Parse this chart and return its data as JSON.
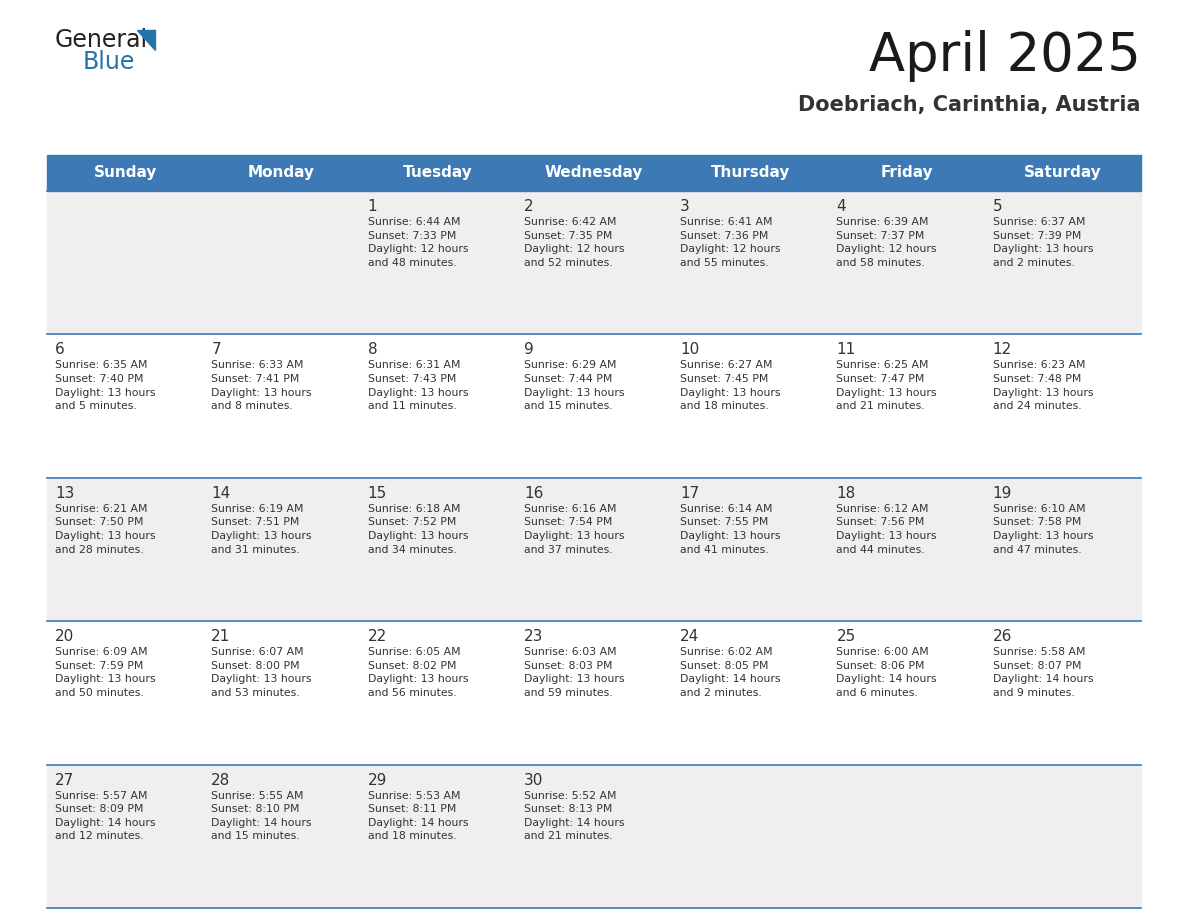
{
  "title": "April 2025",
  "subtitle": "Doebriach, Carinthia, Austria",
  "days_of_week": [
    "Sunday",
    "Monday",
    "Tuesday",
    "Wednesday",
    "Thursday",
    "Friday",
    "Saturday"
  ],
  "header_bg": "#3d7ab5",
  "header_text": "#ffffff",
  "row_bg_odd": "#efefef",
  "row_bg_even": "#ffffff",
  "border_color": "#3d7ab5",
  "text_color": "#333333",
  "calendar": [
    [
      {
        "day": "",
        "info": ""
      },
      {
        "day": "",
        "info": ""
      },
      {
        "day": "1",
        "info": "Sunrise: 6:44 AM\nSunset: 7:33 PM\nDaylight: 12 hours\nand 48 minutes."
      },
      {
        "day": "2",
        "info": "Sunrise: 6:42 AM\nSunset: 7:35 PM\nDaylight: 12 hours\nand 52 minutes."
      },
      {
        "day": "3",
        "info": "Sunrise: 6:41 AM\nSunset: 7:36 PM\nDaylight: 12 hours\nand 55 minutes."
      },
      {
        "day": "4",
        "info": "Sunrise: 6:39 AM\nSunset: 7:37 PM\nDaylight: 12 hours\nand 58 minutes."
      },
      {
        "day": "5",
        "info": "Sunrise: 6:37 AM\nSunset: 7:39 PM\nDaylight: 13 hours\nand 2 minutes."
      }
    ],
    [
      {
        "day": "6",
        "info": "Sunrise: 6:35 AM\nSunset: 7:40 PM\nDaylight: 13 hours\nand 5 minutes."
      },
      {
        "day": "7",
        "info": "Sunrise: 6:33 AM\nSunset: 7:41 PM\nDaylight: 13 hours\nand 8 minutes."
      },
      {
        "day": "8",
        "info": "Sunrise: 6:31 AM\nSunset: 7:43 PM\nDaylight: 13 hours\nand 11 minutes."
      },
      {
        "day": "9",
        "info": "Sunrise: 6:29 AM\nSunset: 7:44 PM\nDaylight: 13 hours\nand 15 minutes."
      },
      {
        "day": "10",
        "info": "Sunrise: 6:27 AM\nSunset: 7:45 PM\nDaylight: 13 hours\nand 18 minutes."
      },
      {
        "day": "11",
        "info": "Sunrise: 6:25 AM\nSunset: 7:47 PM\nDaylight: 13 hours\nand 21 minutes."
      },
      {
        "day": "12",
        "info": "Sunrise: 6:23 AM\nSunset: 7:48 PM\nDaylight: 13 hours\nand 24 minutes."
      }
    ],
    [
      {
        "day": "13",
        "info": "Sunrise: 6:21 AM\nSunset: 7:50 PM\nDaylight: 13 hours\nand 28 minutes."
      },
      {
        "day": "14",
        "info": "Sunrise: 6:19 AM\nSunset: 7:51 PM\nDaylight: 13 hours\nand 31 minutes."
      },
      {
        "day": "15",
        "info": "Sunrise: 6:18 AM\nSunset: 7:52 PM\nDaylight: 13 hours\nand 34 minutes."
      },
      {
        "day": "16",
        "info": "Sunrise: 6:16 AM\nSunset: 7:54 PM\nDaylight: 13 hours\nand 37 minutes."
      },
      {
        "day": "17",
        "info": "Sunrise: 6:14 AM\nSunset: 7:55 PM\nDaylight: 13 hours\nand 41 minutes."
      },
      {
        "day": "18",
        "info": "Sunrise: 6:12 AM\nSunset: 7:56 PM\nDaylight: 13 hours\nand 44 minutes."
      },
      {
        "day": "19",
        "info": "Sunrise: 6:10 AM\nSunset: 7:58 PM\nDaylight: 13 hours\nand 47 minutes."
      }
    ],
    [
      {
        "day": "20",
        "info": "Sunrise: 6:09 AM\nSunset: 7:59 PM\nDaylight: 13 hours\nand 50 minutes."
      },
      {
        "day": "21",
        "info": "Sunrise: 6:07 AM\nSunset: 8:00 PM\nDaylight: 13 hours\nand 53 minutes."
      },
      {
        "day": "22",
        "info": "Sunrise: 6:05 AM\nSunset: 8:02 PM\nDaylight: 13 hours\nand 56 minutes."
      },
      {
        "day": "23",
        "info": "Sunrise: 6:03 AM\nSunset: 8:03 PM\nDaylight: 13 hours\nand 59 minutes."
      },
      {
        "day": "24",
        "info": "Sunrise: 6:02 AM\nSunset: 8:05 PM\nDaylight: 14 hours\nand 2 minutes."
      },
      {
        "day": "25",
        "info": "Sunrise: 6:00 AM\nSunset: 8:06 PM\nDaylight: 14 hours\nand 6 minutes."
      },
      {
        "day": "26",
        "info": "Sunrise: 5:58 AM\nSunset: 8:07 PM\nDaylight: 14 hours\nand 9 minutes."
      }
    ],
    [
      {
        "day": "27",
        "info": "Sunrise: 5:57 AM\nSunset: 8:09 PM\nDaylight: 14 hours\nand 12 minutes."
      },
      {
        "day": "28",
        "info": "Sunrise: 5:55 AM\nSunset: 8:10 PM\nDaylight: 14 hours\nand 15 minutes."
      },
      {
        "day": "29",
        "info": "Sunrise: 5:53 AM\nSunset: 8:11 PM\nDaylight: 14 hours\nand 18 minutes."
      },
      {
        "day": "30",
        "info": "Sunrise: 5:52 AM\nSunset: 8:13 PM\nDaylight: 14 hours\nand 21 minutes."
      },
      {
        "day": "",
        "info": ""
      },
      {
        "day": "",
        "info": ""
      },
      {
        "day": "",
        "info": ""
      }
    ]
  ],
  "logo_color1": "#222222",
  "logo_color2": "#2574a9",
  "logo_triangle_color": "#2574a9"
}
